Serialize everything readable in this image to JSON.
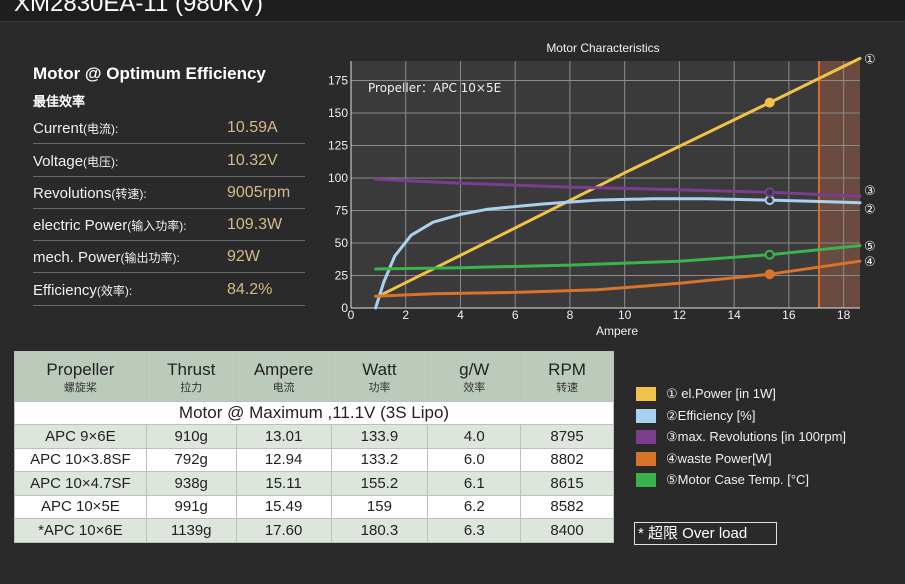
{
  "title": "XM2830EA-11 (980KV)",
  "optimum": {
    "heading": "Motor @ Optimum Efficiency",
    "heading_cn": "最佳效率",
    "rows": [
      {
        "label": "Current",
        "label_cn": "(电流):",
        "value": "10.59A"
      },
      {
        "label": "Voltage",
        "label_cn": "(电压):",
        "value": "10.32V"
      },
      {
        "label": "Revolutions",
        "label_cn": "(转速):",
        "value": "9005rpm"
      },
      {
        "label": "electric Power",
        "label_cn": "(输入功率):",
        "value": "109.3W"
      },
      {
        "label": "mech. Power",
        "label_cn": "(输出功率):",
        "value": "92W"
      },
      {
        "label": "Efficiency",
        "label_cn": "(效率):",
        "value": "84.2%"
      }
    ]
  },
  "chart_data": {
    "type": "line",
    "title": "Motor Characteristics",
    "xlabel": "Ampere",
    "ylabel": "",
    "annotation": "Propeller：APC 10×5E",
    "xlim": [
      0,
      18.6
    ],
    "ylim": [
      0,
      190
    ],
    "xticks": [
      0,
      2,
      4,
      6,
      8,
      10,
      12,
      14,
      16,
      18
    ],
    "yticks": [
      0,
      25,
      50,
      75,
      100,
      125,
      150,
      175
    ],
    "grid": true,
    "overload_from_x": 17.1,
    "marker_x": 15.3,
    "series": [
      {
        "marker": "①",
        "color": "#f0c24a",
        "x": [
          1.0,
          5,
          10,
          15.3,
          18.6
        ],
        "y": [
          9,
          51,
          104,
          158,
          192
        ]
      },
      {
        "marker": "②",
        "color": "#a9d2ef",
        "x": [
          0.9,
          1.2,
          1.6,
          2.2,
          3,
          4,
          5,
          7,
          9,
          11,
          13,
          15.3,
          17,
          18.6
        ],
        "y": [
          0,
          20,
          40,
          56,
          66,
          72,
          76,
          80,
          83,
          84,
          84,
          83,
          82,
          81
        ]
      },
      {
        "marker": "③",
        "color": "#7a3d8f",
        "x": [
          0.9,
          4,
          8,
          12,
          15.3,
          18.6
        ],
        "y": [
          99,
          96,
          93,
          91,
          89,
          86
        ]
      },
      {
        "marker": "④",
        "color": "#d8742a",
        "x": [
          0.9,
          3,
          6,
          9,
          12,
          15.3,
          18.6
        ],
        "y": [
          9,
          11,
          12,
          14,
          19,
          26,
          36
        ]
      },
      {
        "marker": "⑤",
        "color": "#3ab44a",
        "x": [
          0.9,
          4,
          8,
          12,
          15.3,
          18.6
        ],
        "y": [
          30,
          31,
          33,
          36,
          41,
          48
        ]
      }
    ]
  },
  "legend": [
    {
      "color": "#f0c24a",
      "text": "① el.Power [in 1W]"
    },
    {
      "color": "#a9d2ef",
      "text": "②Efficiency [%]"
    },
    {
      "color": "#7a3d8f",
      "text": "③max. Revolutions [in 100rpm]"
    },
    {
      "color": "#d8742a",
      "text": "④waste Power[W]"
    },
    {
      "color": "#3ab44a",
      "text": "⑤Motor Case Temp. [°C]"
    }
  ],
  "overload_label": "* 超限 Over load",
  "table": {
    "headers": [
      {
        "en": "Propeller",
        "cn": "螺旋桨"
      },
      {
        "en": "Thrust",
        "cn": "拉力"
      },
      {
        "en": "Ampere",
        "cn": "电流"
      },
      {
        "en": "Watt",
        "cn": "功率"
      },
      {
        "en": "g/W",
        "cn": "效率"
      },
      {
        "en": "RPM",
        "cn": "转速"
      }
    ],
    "subheader": "Motor @ Maximum ,11.1V (3S Lipo)",
    "rows": [
      [
        "APC 9×6E",
        "910g",
        "13.01",
        "133.9",
        "4.0",
        "8795"
      ],
      [
        "APC 10×3.8SF",
        "792g",
        "12.94",
        "133.2",
        "6.0",
        "8802"
      ],
      [
        "APC 10×4.7SF",
        "938g",
        "15.11",
        "155.2",
        "6.1",
        "8615"
      ],
      [
        "APC 10×5E",
        "991g",
        "15.49",
        "159",
        "6.2",
        "8582"
      ],
      [
        "*APC 10×6E",
        "1139g",
        "17.60",
        "180.3",
        "6.3",
        "8400"
      ]
    ]
  }
}
